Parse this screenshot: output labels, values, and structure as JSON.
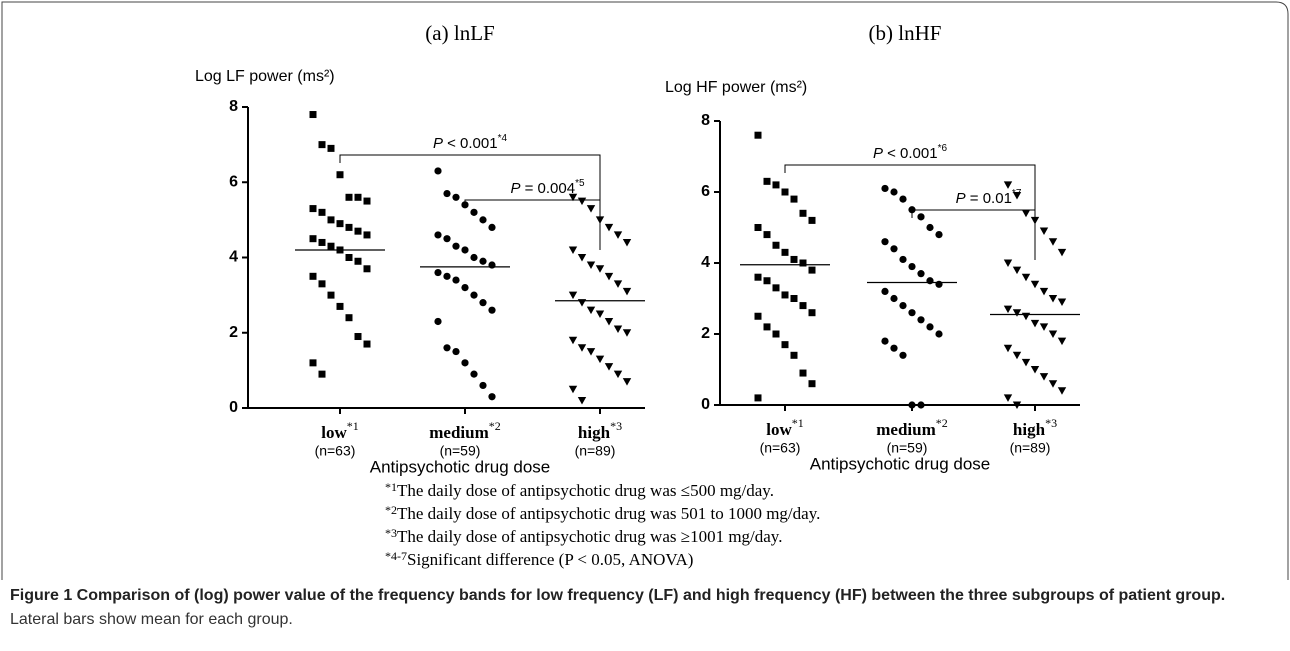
{
  "chart_data": [
    {
      "type": "strip",
      "title": "(a) lnLF",
      "y_label": "Log LF power (ms²)",
      "x_label": "Antipsychotic drug dose",
      "categories": [
        "low",
        "medium",
        "high"
      ],
      "category_notes": [
        "*1",
        "*2",
        "*3"
      ],
      "category_counts": [
        "(n=63)",
        "(n=59)",
        "(n=89)"
      ],
      "markers": [
        "square",
        "circle",
        "triangle-down"
      ],
      "color": "#000000",
      "ylim": [
        0,
        8
      ],
      "yticks": [
        0,
        2,
        4,
        6,
        8
      ],
      "means": [
        4.2,
        3.75,
        2.85
      ],
      "series": [
        {
          "name": "low",
          "values": [
            7.8,
            7.0,
            6.9,
            6.2,
            5.6,
            5.6,
            5.5,
            5.3,
            5.2,
            5.0,
            4.9,
            4.8,
            4.7,
            4.6,
            4.5,
            4.4,
            4.3,
            4.2,
            4.0,
            3.9,
            3.7,
            3.5,
            3.3,
            3.0,
            2.7,
            2.4,
            1.9,
            1.7,
            1.2,
            0.9
          ]
        },
        {
          "name": "medium",
          "values": [
            6.3,
            5.7,
            5.6,
            5.4,
            5.2,
            5.0,
            4.8,
            4.6,
            4.5,
            4.3,
            4.2,
            4.0,
            3.9,
            3.8,
            3.6,
            3.5,
            3.4,
            3.2,
            3.0,
            2.8,
            2.6,
            2.3,
            1.6,
            1.5,
            1.2,
            0.9,
            0.6,
            0.3
          ]
        },
        {
          "name": "high",
          "values": [
            5.6,
            5.5,
            5.3,
            5.0,
            4.8,
            4.6,
            4.4,
            4.2,
            4.0,
            3.8,
            3.7,
            3.5,
            3.3,
            3.1,
            3.0,
            2.8,
            2.6,
            2.5,
            2.3,
            2.1,
            2.0,
            1.8,
            1.6,
            1.5,
            1.3,
            1.1,
            0.9,
            0.7,
            0.5,
            0.2
          ]
        }
      ],
      "annotations": [
        {
          "p": "P",
          "label": " < 0.001",
          "note": "*4",
          "between": [
            "low",
            "high"
          ]
        },
        {
          "p": "P",
          "label": " = 0.004",
          "note": "*5",
          "between": [
            "medium",
            "high"
          ]
        }
      ]
    },
    {
      "type": "strip",
      "title": "(b) lnHF",
      "y_label": "Log HF power (ms²)",
      "x_label": "Antipsychotic drug dose",
      "categories": [
        "low",
        "medium",
        "high"
      ],
      "category_notes": [
        "*1",
        "*2",
        "*3"
      ],
      "category_counts": [
        "(n=63)",
        "(n=59)",
        "(n=89)"
      ],
      "markers": [
        "square",
        "circle",
        "triangle-down"
      ],
      "color": "#000000",
      "ylim": [
        0,
        8
      ],
      "yticks": [
        0,
        2,
        4,
        6,
        8
      ],
      "means": [
        3.95,
        3.45,
        2.55
      ],
      "series": [
        {
          "name": "low",
          "values": [
            7.6,
            6.3,
            6.2,
            6.0,
            5.8,
            5.4,
            5.2,
            5.0,
            4.8,
            4.5,
            4.3,
            4.1,
            4.0,
            3.8,
            3.6,
            3.5,
            3.3,
            3.1,
            3.0,
            2.8,
            2.6,
            2.5,
            2.2,
            2.0,
            1.7,
            1.4,
            0.9,
            0.6,
            0.2
          ]
        },
        {
          "name": "medium",
          "values": [
            6.1,
            6.0,
            5.8,
            5.5,
            5.3,
            5.0,
            4.8,
            4.6,
            4.4,
            4.1,
            3.9,
            3.7,
            3.5,
            3.4,
            3.2,
            3.0,
            2.8,
            2.6,
            2.4,
            2.2,
            2.0,
            1.8,
            1.6,
            1.4,
            0.0,
            0.0
          ]
        },
        {
          "name": "high",
          "values": [
            6.2,
            5.9,
            5.4,
            5.2,
            4.9,
            4.6,
            4.3,
            4.0,
            3.8,
            3.6,
            3.4,
            3.2,
            3.0,
            2.9,
            2.7,
            2.6,
            2.5,
            2.3,
            2.2,
            2.0,
            1.8,
            1.6,
            1.4,
            1.2,
            1.0,
            0.8,
            0.6,
            0.4,
            0.2,
            0.0
          ]
        }
      ],
      "annotations": [
        {
          "p": "P",
          "label": " < 0.001",
          "note": "*6",
          "between": [
            "low",
            "high"
          ]
        },
        {
          "p": "P",
          "label": " = 0.01",
          "note": "*7",
          "between": [
            "medium",
            "high"
          ]
        }
      ]
    }
  ],
  "footnotes": [
    {
      "mark": "*1",
      "text": "The daily dose of antipsychotic drug was ≤500 mg/day."
    },
    {
      "mark": "*2",
      "text": "The daily dose of antipsychotic drug was 501 to 1000 mg/day."
    },
    {
      "mark": "*3",
      "text": "The daily dose of antipsychotic drug was ≥1001 mg/day."
    },
    {
      "mark": "*4-7",
      "text": "Significant difference (P < 0.05, ANOVA)"
    }
  ],
  "caption": {
    "title": "Figure 1 Comparison of (log) power value of the frequency bands for low frequency (LF) and high frequency (HF) between the three subgroups of patient group.",
    "text": " Lateral bars show mean for each group."
  }
}
